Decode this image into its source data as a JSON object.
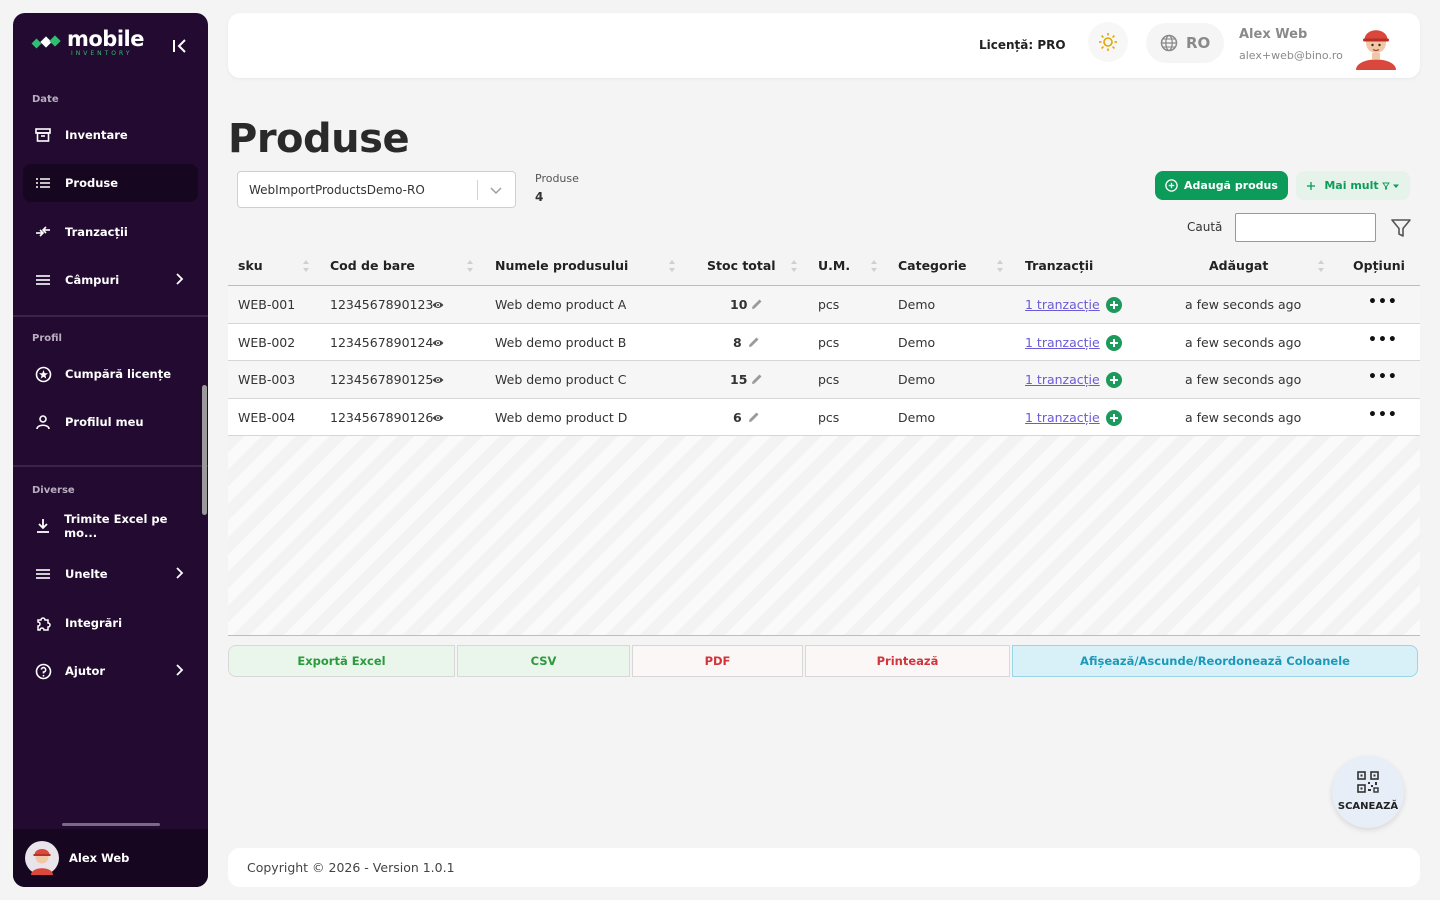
{
  "sidebar": {
    "logo_main": "mobile",
    "logo_sub": "INVENTORY",
    "sections": {
      "date": "Date",
      "profil": "Profil",
      "diverse": "Diverse"
    },
    "items": [
      {
        "label": "Inventare",
        "icon": "archive-icon"
      },
      {
        "label": "Produse",
        "icon": "list-icon",
        "active": true
      },
      {
        "label": "Tranzacții",
        "icon": "transfer-icon"
      },
      {
        "label": "Câmpuri",
        "icon": "menu-icon",
        "expandable": true
      },
      {
        "label": "Cumpără licențe",
        "icon": "badge-icon"
      },
      {
        "label": "Profilul meu",
        "icon": "person-icon"
      },
      {
        "label": "Trimite Excel pe mo...",
        "icon": "download-icon"
      },
      {
        "label": "Unelte",
        "icon": "menu-icon",
        "expandable": true
      },
      {
        "label": "Integrări",
        "icon": "puzzle-icon"
      },
      {
        "label": "Ajutor",
        "icon": "help-icon",
        "expandable": true
      }
    ],
    "user_name": "Alex Web"
  },
  "header": {
    "license": "Licență: PRO",
    "lang": "RO",
    "user_name": "Alex Web",
    "user_email": "alex+web@bino.ro"
  },
  "page": {
    "title": "Produse",
    "inventory_select": "WebImportProductsDemo-RO",
    "count_label": "Produse",
    "count_value": "4",
    "add_button": "Adaugă produs",
    "more_button": "Mai mult",
    "search_label": "Caută",
    "search_value": ""
  },
  "table": {
    "columns": [
      "sku",
      "Cod de bare",
      "Numele produsului",
      "Stoc total",
      "U.M.",
      "Categorie",
      "Tranzacții",
      "Adăugat",
      "Opțiuni"
    ],
    "rows": [
      {
        "sku": "WEB-001",
        "barcode": "1234567890123",
        "name": "Web demo product A",
        "stock": "10",
        "um": "pcs",
        "category": "Demo",
        "tx": "1 tranzacție",
        "added": "a few seconds ago"
      },
      {
        "sku": "WEB-002",
        "barcode": "1234567890124",
        "name": "Web demo product B",
        "stock": "8",
        "um": "pcs",
        "category": "Demo",
        "tx": "1 tranzacție",
        "added": "a few seconds ago"
      },
      {
        "sku": "WEB-003",
        "barcode": "1234567890125",
        "name": "Web demo product C",
        "stock": "15",
        "um": "pcs",
        "category": "Demo",
        "tx": "1 tranzacție",
        "added": "a few seconds ago"
      },
      {
        "sku": "WEB-004",
        "barcode": "1234567890126",
        "name": "Web demo product D",
        "stock": "6",
        "um": "pcs",
        "category": "Demo",
        "tx": "1 tranzacție",
        "added": "a few seconds ago"
      }
    ]
  },
  "export": {
    "excel": "Exportă Excel",
    "csv": "CSV",
    "pdf": "PDF",
    "print": "Printează",
    "columns": "Afișează/Ascunde/Reordonează Coloanele"
  },
  "footer": "Copyright © 2026 - Version 1.0.1",
  "scan_label": "SCANEAZĂ",
  "colors": {
    "sidebar_bg": "#220a30",
    "brand_green": "#0d9b5a",
    "link": "#6b5bd6"
  }
}
